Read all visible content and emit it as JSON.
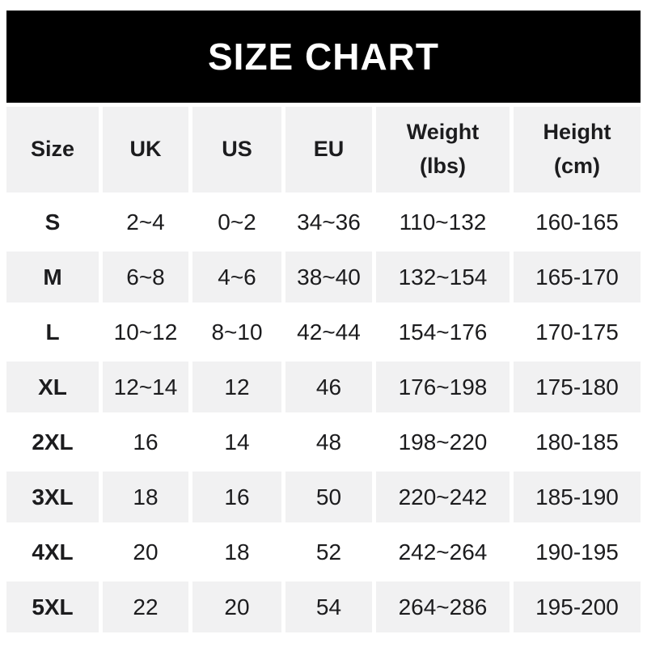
{
  "banner": {
    "title": "SIZE CHART"
  },
  "colors": {
    "banner_bg": "#000000",
    "banner_text": "#ffffff",
    "shaded_row_bg": "#f1f1f2",
    "plain_row_bg": "#ffffff",
    "text": "#1c1c1e"
  },
  "table": {
    "header": [
      "Size",
      "UK",
      "US",
      "EU",
      "Weight\n(lbs)",
      "Height\n(cm)"
    ],
    "rows": [
      {
        "size": "S",
        "uk": "2~4",
        "us": "0~2",
        "eu": "34~36",
        "weight": "110~132",
        "height": "160-165"
      },
      {
        "size": "M",
        "uk": "6~8",
        "us": "4~6",
        "eu": "38~40",
        "weight": "132~154",
        "height": "165-170"
      },
      {
        "size": "L",
        "uk": "10~12",
        "us": "8~10",
        "eu": "42~44",
        "weight": "154~176",
        "height": "170-175"
      },
      {
        "size": "XL",
        "uk": "12~14",
        "us": "12",
        "eu": "46",
        "weight": "176~198",
        "height": "175-180"
      },
      {
        "size": "2XL",
        "uk": "16",
        "us": "14",
        "eu": "48",
        "weight": "198~220",
        "height": "180-185"
      },
      {
        "size": "3XL",
        "uk": "18",
        "us": "16",
        "eu": "50",
        "weight": "220~242",
        "height": "185-190"
      },
      {
        "size": "4XL",
        "uk": "20",
        "us": "18",
        "eu": "52",
        "weight": "242~264",
        "height": "190-195"
      },
      {
        "size": "5XL",
        "uk": "22",
        "us": "20",
        "eu": "54",
        "weight": "264~286",
        "height": "195-200"
      }
    ]
  },
  "chart_data": {
    "type": "table",
    "title": "SIZE CHART",
    "columns": [
      "Size",
      "UK",
      "US",
      "EU",
      "Weight (lbs)",
      "Height (cm)"
    ],
    "rows": [
      [
        "S",
        "2~4",
        "0~2",
        "34~36",
        "110~132",
        "160-165"
      ],
      [
        "M",
        "6~8",
        "4~6",
        "38~40",
        "132~154",
        "165-170"
      ],
      [
        "L",
        "10~12",
        "8~10",
        "42~44",
        "154~176",
        "170-175"
      ],
      [
        "XL",
        "12~14",
        "12",
        "46",
        "176~198",
        "175-180"
      ],
      [
        "2XL",
        "16",
        "14",
        "48",
        "198~220",
        "180-185"
      ],
      [
        "3XL",
        "18",
        "16",
        "50",
        "220~242",
        "185-190"
      ],
      [
        "4XL",
        "20",
        "18",
        "52",
        "242~264",
        "190-195"
      ],
      [
        "5XL",
        "22",
        "20",
        "54",
        "264~286",
        "195-200"
      ]
    ],
    "layout": {
      "header_shaded": true,
      "row_shading": "alternating starting white",
      "grid": "5px white gaps between cells"
    }
  }
}
